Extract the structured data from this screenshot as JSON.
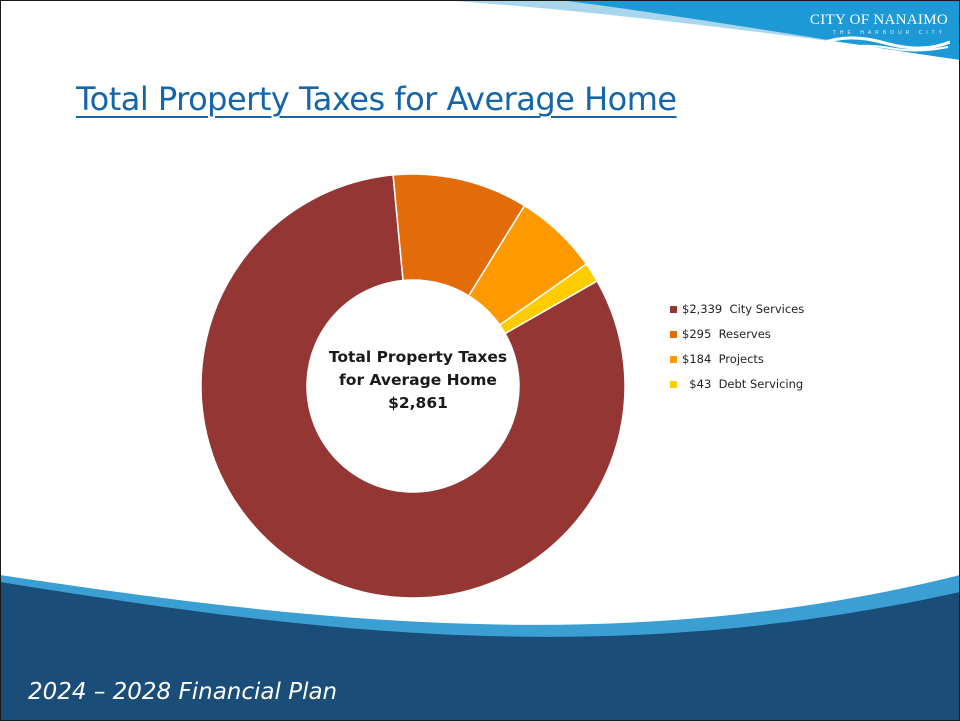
{
  "header": {
    "logo_text": "CITY OF NANAIMO",
    "logo_subtext": "THE HARBOUR CITY"
  },
  "title": "Total Property Taxes for Average Home",
  "center_label": {
    "line1": "Total Property Taxes",
    "line2": "for Average Home",
    "line3": "$2,861"
  },
  "footer": {
    "text": "2024 – 2028 Financial Plan"
  },
  "colors": {
    "title": "#1565a8",
    "footer_band": "#1a4d77",
    "accent_band": "#1a9ad6"
  },
  "chart_data": {
    "type": "pie",
    "title": "Total Property Taxes for Average Home",
    "total": 2861,
    "legend_position": "right",
    "series": [
      {
        "name": "City Services",
        "label": "$2,339  City Services",
        "value": 2339,
        "color": "#943634"
      },
      {
        "name": "Reserves",
        "label": "$295  Reserves",
        "value": 295,
        "color": "#e36c0a"
      },
      {
        "name": "Projects",
        "label": "$184  Projects",
        "value": 184,
        "color": "#ff9900"
      },
      {
        "name": "Debt Servicing",
        "label": "  $43  Debt Servicing",
        "value": 43,
        "color": "#ffcc00"
      }
    ]
  }
}
